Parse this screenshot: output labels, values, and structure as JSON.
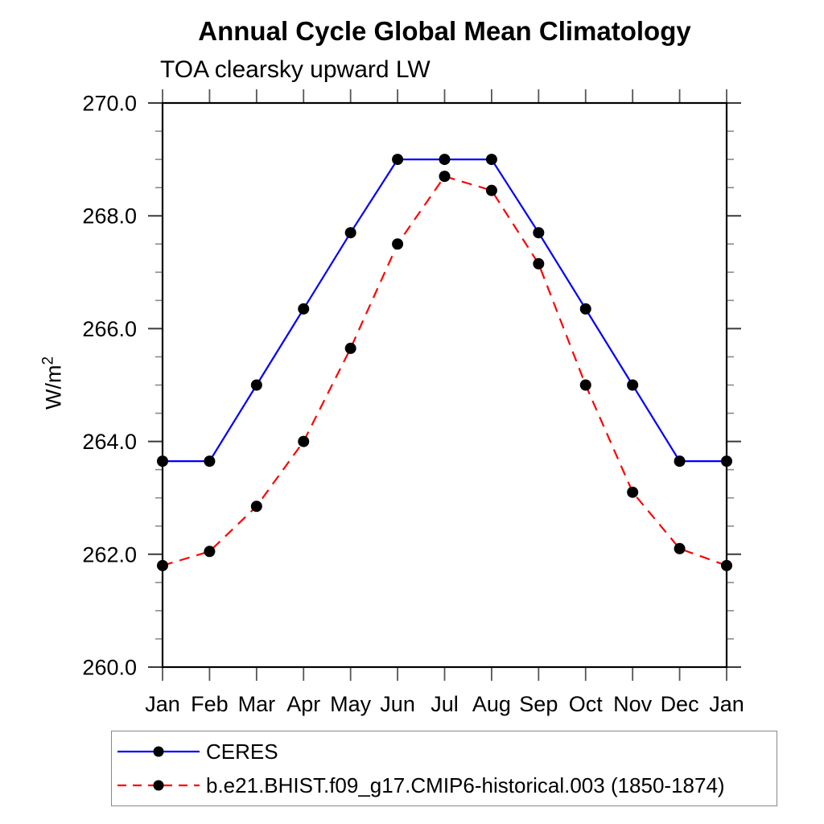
{
  "header": {
    "title": "Annual Cycle Global Mean Climatology",
    "subtitle": "TOA clearsky upward LW"
  },
  "chart_data": {
    "type": "line",
    "title": "Annual Cycle Global Mean Climatology",
    "subtitle": "TOA clearsky upward LW",
    "ylabel_base": "W/m",
    "ylabel_exponent": "2",
    "categories": [
      "Jan",
      "Feb",
      "Mar",
      "Apr",
      "May",
      "Jun",
      "Jul",
      "Aug",
      "Sep",
      "Oct",
      "Nov",
      "Dec",
      "Jan"
    ],
    "ylim": [
      260.0,
      270.0
    ],
    "ytick_major": [
      260,
      262,
      264,
      266,
      268,
      270
    ],
    "ytick_labels": [
      "260.0",
      "262.0",
      "264.0",
      "266.0",
      "268.0",
      "270.0"
    ],
    "ytick_minor_step": 0.5,
    "grid": false,
    "legend_position": "bottom-left",
    "axis_color": "#000000",
    "series": [
      {
        "name": "CERES",
        "color": "#0000ff",
        "style": "solid",
        "marker": "circle",
        "marker_color": "#000000",
        "values": [
          263.65,
          263.65,
          265.0,
          266.35,
          267.7,
          269.0,
          269.0,
          269.0,
          267.7,
          266.35,
          265.0,
          263.65,
          263.65
        ]
      },
      {
        "name": "b.e21.BHIST.f09_g17.CMIP6-historical.003 (1850-1874)",
        "color": "#ff0000",
        "style": "dashed",
        "marker": "circle",
        "marker_color": "#000000",
        "values": [
          261.8,
          262.05,
          262.85,
          264.0,
          265.65,
          267.5,
          268.7,
          268.45,
          267.15,
          265.0,
          263.1,
          262.1,
          261.8
        ]
      }
    ]
  }
}
